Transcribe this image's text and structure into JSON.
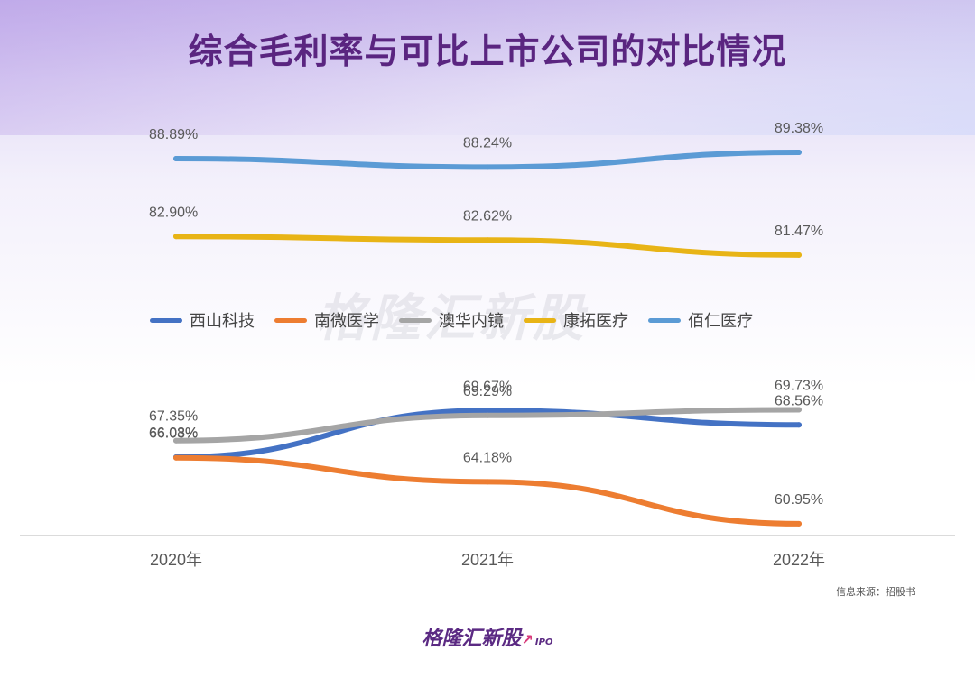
{
  "title": "综合毛利率与可比上市公司的对比情况",
  "watermark": "格隆汇新股",
  "source": "信息来源：招股书",
  "brand": {
    "name": "格隆汇新股",
    "suffix": "IPO"
  },
  "chart_data": {
    "type": "line",
    "title": "综合毛利率与可比上市公司的对比情况",
    "categories": [
      "2020年",
      "2021年",
      "2022年"
    ],
    "legend_position": "middle",
    "grid": false,
    "series": [
      {
        "name": "西山科技",
        "color": "#4472c4",
        "values": [
          66.08,
          69.67,
          68.56
        ],
        "labels": [
          "66.08%",
          "69.67%",
          "68.56%"
        ]
      },
      {
        "name": "南微医学",
        "color": "#ed7d31",
        "values": [
          66.03,
          64.18,
          60.95
        ],
        "labels": [
          "66.03%",
          "64.18%",
          "60.95%"
        ]
      },
      {
        "name": "澳华内镜",
        "color": "#a5a5a5",
        "values": [
          67.35,
          69.29,
          69.73
        ],
        "labels": [
          "67.35%",
          "69.29%",
          "69.73%"
        ]
      },
      {
        "name": "康拓医疗",
        "color": "#e8b416",
        "values": [
          82.9,
          82.62,
          81.47
        ],
        "labels": [
          "82.90%",
          "82.62%",
          "81.47%"
        ]
      },
      {
        "name": "佰仁医疗",
        "color": "#5b9bd5",
        "values": [
          88.89,
          88.24,
          89.38
        ],
        "labels": [
          "88.89%",
          "88.24%",
          "89.38%"
        ]
      }
    ]
  }
}
